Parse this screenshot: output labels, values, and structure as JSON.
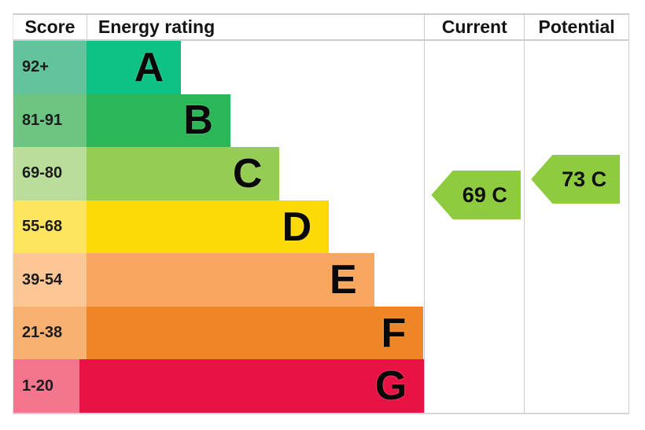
{
  "header": {
    "score": "Score",
    "energy_rating": "Energy rating",
    "current": "Current",
    "potential": "Potential"
  },
  "chart_data": {
    "type": "table",
    "title": "Energy efficiency rating chart (EPC)",
    "columns": [
      "Score",
      "Energy rating",
      "Current",
      "Potential"
    ],
    "bands": [
      {
        "letter": "A",
        "score_range": "92+",
        "bar_color": "#0dc284",
        "score_bg_color": "#62c39c",
        "bar_width_pct": 23
      },
      {
        "letter": "B",
        "score_range": "81-91",
        "bar_color": "#2bb757",
        "score_bg_color": "#6cc681",
        "bar_width_pct": 35
      },
      {
        "letter": "C",
        "score_range": "69-80",
        "bar_color": "#95cc53",
        "score_bg_color": "#b9de99",
        "bar_width_pct": 47
      },
      {
        "letter": "D",
        "score_range": "55-68",
        "bar_color": "#fed908",
        "score_bg_color": "#ffe45f",
        "bar_width_pct": 59
      },
      {
        "letter": "E",
        "score_range": "39-54",
        "bar_color": "#f9a65f",
        "score_bg_color": "#fcc795",
        "bar_width_pct": 70
      },
      {
        "letter": "F",
        "score_range": "21-38",
        "bar_color": "#ee8526",
        "score_bg_color": "#f8b170",
        "bar_width_pct": 82
      },
      {
        "letter": "G",
        "score_range": "1-20",
        "bar_color": "#e91244",
        "score_bg_color": "#f3768e",
        "bar_width_pct": 94
      }
    ],
    "current": {
      "label": "69 C",
      "value": 69,
      "band": "C",
      "arrow_color": "#8ecb3f"
    },
    "potential": {
      "label": "73 C",
      "value": 73,
      "band": "C",
      "arrow_color": "#8ecb3f"
    }
  }
}
